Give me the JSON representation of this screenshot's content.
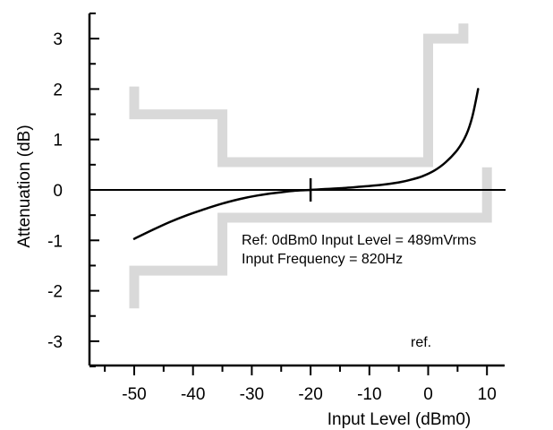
{
  "chart_data": {
    "type": "line",
    "title": "",
    "xlabel": "Input Level (dBm0)",
    "ylabel": "Attenuation (dB)",
    "xlim": [
      -58,
      13
    ],
    "ylim": [
      -3.5,
      3.5
    ],
    "x_ticks": [
      -50,
      -40,
      -30,
      -20,
      -10,
      0,
      10
    ],
    "y_ticks": [
      -3,
      -2,
      -1,
      0,
      1,
      2,
      3
    ],
    "x_tick_labels": [
      "-50",
      "-40",
      "-30",
      "-20",
      "-10",
      "0",
      "10"
    ],
    "y_tick_labels": [
      "-3",
      "-2",
      "-1",
      "0",
      "1",
      "2",
      "3"
    ],
    "reference_point": {
      "x": -20,
      "y": 0,
      "label": "ref."
    },
    "annotations": [
      "Ref: 0dBm0 Input Level = 489mVrms",
      "Input Frequency = 820Hz"
    ],
    "grid": false,
    "series": [
      {
        "name": "",
        "color": "#000000",
        "values": [
          [
            -50,
            -0.97
          ],
          [
            -47,
            -0.8
          ],
          [
            -44,
            -0.64
          ],
          [
            -41,
            -0.5
          ],
          [
            -38,
            -0.38
          ],
          [
            -35,
            -0.27
          ],
          [
            -32,
            -0.18
          ],
          [
            -29,
            -0.11
          ],
          [
            -26,
            -0.06
          ],
          [
            -23,
            -0.02
          ],
          [
            -20,
            0.0
          ],
          [
            -17,
            0.02
          ],
          [
            -14,
            0.04
          ],
          [
            -11,
            0.07
          ],
          [
            -8,
            0.1
          ],
          [
            -5,
            0.15
          ],
          [
            -3,
            0.2
          ],
          [
            -1,
            0.27
          ],
          [
            1,
            0.38
          ],
          [
            3,
            0.55
          ],
          [
            5,
            0.8
          ],
          [
            6.5,
            1.1
          ],
          [
            7.5,
            1.45
          ],
          [
            8.5,
            2.0
          ]
        ]
      }
    ],
    "mask": {
      "color": "#d9d9d9",
      "upper": [
        [
          -50,
          2.05
        ],
        [
          -50,
          1.5
        ],
        [
          -35,
          1.5
        ],
        [
          -35,
          0.55
        ],
        [
          0,
          0.55
        ],
        [
          0,
          3.0
        ],
        [
          6,
          3.0
        ],
        [
          6,
          3.3
        ]
      ],
      "lower": [
        [
          -50,
          -2.35
        ],
        [
          -50,
          -1.6
        ],
        [
          -35,
          -1.6
        ],
        [
          -35,
          -0.55
        ],
        [
          10,
          -0.55
        ],
        [
          10,
          0.45
        ]
      ]
    }
  }
}
